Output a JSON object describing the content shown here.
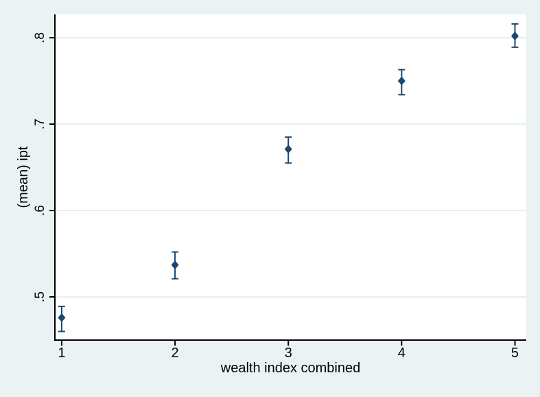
{
  "figure": {
    "background_color": "#eaf2f3",
    "plot_background_color": "#ffffff",
    "grid_color": "#dde9f2",
    "axis_color": "#000000",
    "text_color": "#000000",
    "marker_color": "#1a476f"
  },
  "chart_data": {
    "type": "scatter",
    "title": "",
    "xlabel": "wealth index combined",
    "ylabel": "(mean) ipt",
    "grid": "horizontal",
    "legend": "none",
    "marker": "diamond",
    "error_bars": "capped",
    "xlim": [
      0.94,
      5.1
    ],
    "ylim": [
      0.45,
      0.827
    ],
    "xticks": {
      "values": [
        1,
        2,
        3,
        4,
        5
      ],
      "labels": [
        "1",
        "2",
        "3",
        "4",
        "5"
      ]
    },
    "yticks": {
      "values": [
        0.5,
        0.6,
        0.7,
        0.8
      ],
      "labels": [
        ".5",
        ".6",
        ".7",
        ".8"
      ]
    },
    "x": [
      1,
      2,
      3,
      4,
      5
    ],
    "series": [
      {
        "name": "(mean) ipt",
        "values": [
          0.476,
          0.537,
          0.671,
          0.75,
          0.802
        ],
        "ci_low": [
          0.46,
          0.521,
          0.655,
          0.734,
          0.789
        ],
        "ci_high": [
          0.489,
          0.552,
          0.685,
          0.763,
          0.816
        ]
      }
    ]
  }
}
